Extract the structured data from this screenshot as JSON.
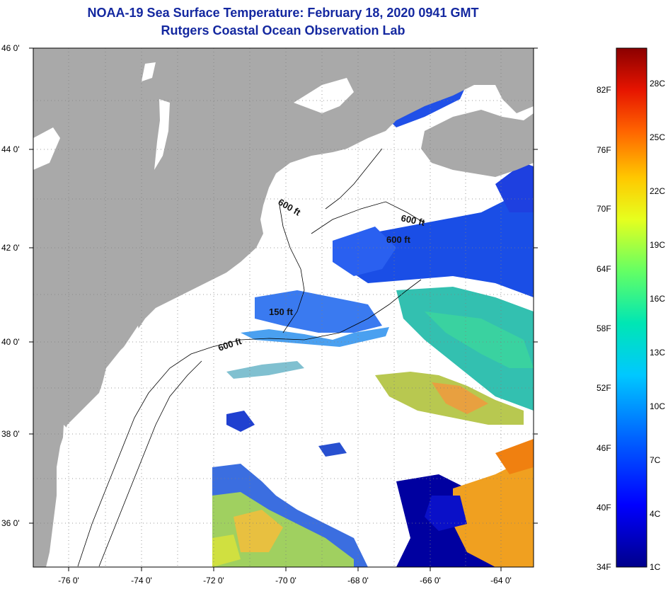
{
  "header": {
    "title_line1": "NOAA-19 Sea Surface Temperature:  February 18, 2020 0941 GMT",
    "title_line2": "Rutgers Coastal Ocean Observation Lab"
  },
  "map": {
    "lat_labels": [
      "46 0'",
      "44 0'",
      "42 0'",
      "40 0'",
      "38 0'",
      "36 0'"
    ],
    "lon_labels": [
      "-76 0'",
      "-74 0'",
      "-72 0'",
      "-70 0'",
      "-68 0'",
      "-66 0'",
      "-64 0'"
    ],
    "contour_labels": [
      "600 ft",
      "600 ft",
      "600 ft",
      "150 ft",
      "600 ft"
    ],
    "colors": {
      "land": "#a9a9a9",
      "cloud": "#ffffff",
      "grid": "#7f7f7f"
    }
  },
  "colorbar": {
    "fahrenheit_labels": [
      "82F",
      "76F",
      "70F",
      "64F",
      "58F",
      "52F",
      "46F",
      "40F",
      "34F"
    ],
    "celsius_labels": [
      "28C",
      "25C",
      "22C",
      "19C",
      "16C",
      "13C",
      "10C",
      "7C",
      "4C",
      "1C"
    ]
  }
}
